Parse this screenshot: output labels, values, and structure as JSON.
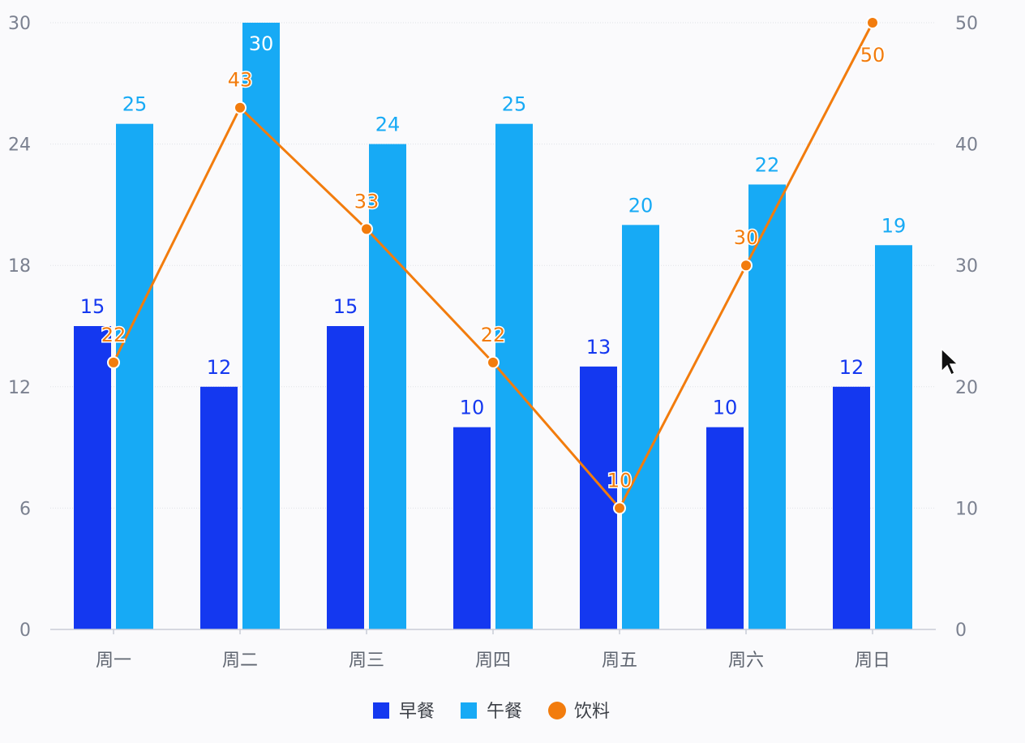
{
  "chart_data": {
    "type": "bar",
    "categories": [
      "周一",
      "周二",
      "周三",
      "周四",
      "周五",
      "周六",
      "周日"
    ],
    "series": [
      {
        "name": "早餐",
        "type": "bar",
        "axis": "left",
        "color": "#1438f0",
        "values": [
          15,
          12,
          15,
          10,
          13,
          10,
          12
        ]
      },
      {
        "name": "午餐",
        "type": "bar",
        "axis": "left",
        "color": "#17aaf5",
        "values": [
          25,
          30,
          24,
          25,
          20,
          22,
          19
        ]
      },
      {
        "name": "饮料",
        "type": "line",
        "axis": "right",
        "color": "#f27c0d",
        "values": [
          22,
          43,
          33,
          22,
          10,
          30,
          50
        ]
      }
    ],
    "y_left": {
      "ticks": [
        "0",
        "6",
        "12",
        "18",
        "24",
        "30"
      ],
      "range": [
        0,
        30
      ]
    },
    "y_right": {
      "ticks": [
        "0",
        "10",
        "20",
        "30",
        "40",
        "50"
      ],
      "range": [
        0,
        50
      ]
    },
    "grid": true,
    "legend_position": "bottom-center"
  }
}
